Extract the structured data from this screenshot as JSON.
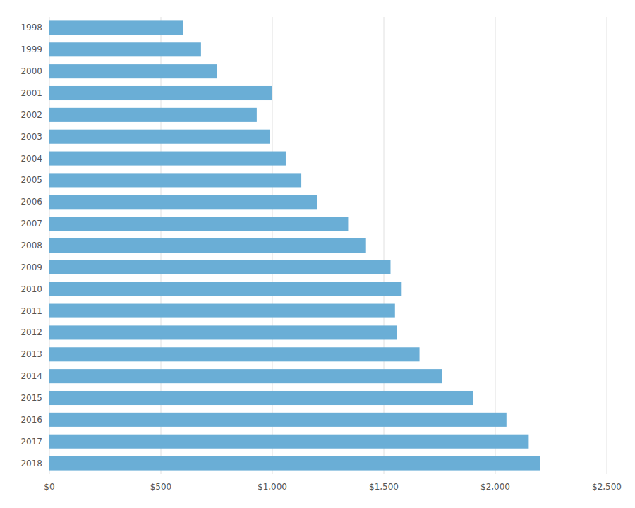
{
  "chart_data": {
    "type": "bar",
    "orientation": "horizontal",
    "categories": [
      "1998",
      "1999",
      "2000",
      "2001",
      "2002",
      "2003",
      "2004",
      "2005",
      "2006",
      "2007",
      "2008",
      "2009",
      "2010",
      "2011",
      "2012",
      "2013",
      "2014",
      "2015",
      "2016",
      "2017",
      "2018"
    ],
    "values": [
      600,
      680,
      750,
      1000,
      930,
      990,
      1060,
      1130,
      1200,
      1340,
      1420,
      1530,
      1580,
      1550,
      1560,
      1660,
      1760,
      1900,
      2050,
      2150,
      2200
    ],
    "color": "#6aaed6",
    "xlim": [
      0,
      2500
    ],
    "xticks": [
      {
        "value": 0,
        "label": "$0"
      },
      {
        "value": 500,
        "label": "$500"
      },
      {
        "value": 1000,
        "label": "$1,000"
      },
      {
        "value": 1500,
        "label": "$1,500"
      },
      {
        "value": 2000,
        "label": "$2,000"
      },
      {
        "value": 2500,
        "label": "$2,500"
      }
    ],
    "grid": true
  }
}
